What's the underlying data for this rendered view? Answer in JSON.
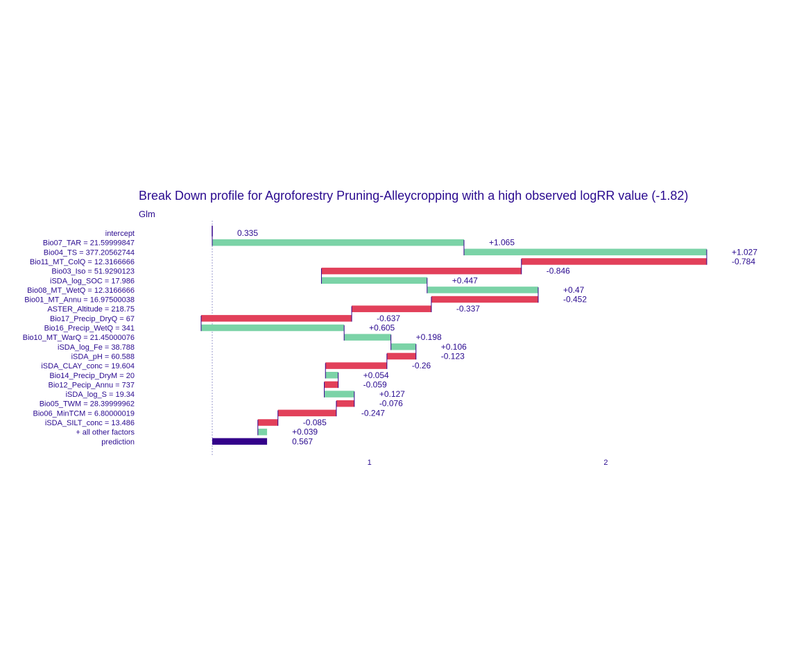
{
  "chart_data": {
    "type": "bar",
    "title": "Break Down profile for Agroforestry Pruning-Alleycropping with a high observed logRR value (-1.82)",
    "subtitle": "Glm",
    "xlabel": "",
    "ylabel": "",
    "xlim": [
      0.335,
      2.43
    ],
    "xticks": [
      1,
      2
    ],
    "grid": false,
    "legend": "none",
    "colors": {
      "positive": "#7bd3a7",
      "negative": "#e2405a",
      "prediction": "#33008a",
      "text": "#2a0a8f",
      "baseline": "#9a9acc",
      "connector": "#33008a"
    },
    "rows": [
      {
        "label": "intercept",
        "kind": "intercept",
        "start": 0.335,
        "end": 0.335,
        "text": "0.335"
      },
      {
        "label": "Bio07_TAR = 21.59999847",
        "kind": "pos",
        "start": 0.335,
        "end": 1.4,
        "text": "+1.065"
      },
      {
        "label": "Bio04_TS = 377.20562744",
        "kind": "pos",
        "start": 1.4,
        "end": 2.427,
        "text": "+1.027"
      },
      {
        "label": "Bio11_MT_ColQ = 12.3166666",
        "kind": "neg",
        "start": 2.427,
        "end": 1.643,
        "text": "-0.784"
      },
      {
        "label": "Bio03_Iso = 51.9290123",
        "kind": "neg",
        "start": 1.643,
        "end": 0.797,
        "text": "-0.846"
      },
      {
        "label": "iSDA_log_SOC = 17.986",
        "kind": "pos",
        "start": 0.797,
        "end": 1.244,
        "text": "+0.447"
      },
      {
        "label": "Bio08_MT_WetQ = 12.3166666",
        "kind": "pos",
        "start": 1.244,
        "end": 1.714,
        "text": "+0.47"
      },
      {
        "label": "Bio01_MT_Annu = 16.97500038",
        "kind": "neg",
        "start": 1.714,
        "end": 1.262,
        "text": "-0.452"
      },
      {
        "label": "ASTER_Altitude = 218.75",
        "kind": "neg",
        "start": 1.262,
        "end": 0.925,
        "text": "-0.337"
      },
      {
        "label": "Bio17_Precip_DryQ = 67",
        "kind": "neg",
        "start": 0.925,
        "end": 0.288,
        "text": "-0.637"
      },
      {
        "label": "Bio16_Precip_WetQ = 341",
        "kind": "pos",
        "start": 0.288,
        "end": 0.893,
        "text": "+0.605"
      },
      {
        "label": "Bio10_MT_WarQ = 21.45000076",
        "kind": "pos",
        "start": 0.893,
        "end": 1.091,
        "text": "+0.198"
      },
      {
        "label": "iSDA_log_Fe = 38.788",
        "kind": "pos",
        "start": 1.091,
        "end": 1.197,
        "text": "+0.106"
      },
      {
        "label": "iSDA_pH = 60.588",
        "kind": "neg",
        "start": 1.197,
        "end": 1.074,
        "text": "-0.123"
      },
      {
        "label": "iSDA_CLAY_conc = 19.604",
        "kind": "neg",
        "start": 1.074,
        "end": 0.814,
        "text": "-0.26"
      },
      {
        "label": "Bio14_Precip_DryM = 20",
        "kind": "pos",
        "start": 0.814,
        "end": 0.868,
        "text": "+0.054"
      },
      {
        "label": "Bio12_Pecip_Annu = 737",
        "kind": "neg",
        "start": 0.868,
        "end": 0.809,
        "text": "-0.059"
      },
      {
        "label": "iSDA_log_S = 19.34",
        "kind": "pos",
        "start": 0.809,
        "end": 0.936,
        "text": "+0.127"
      },
      {
        "label": "Bio05_TWM = 28.39999962",
        "kind": "neg",
        "start": 0.936,
        "end": 0.86,
        "text": "-0.076"
      },
      {
        "label": "Bio06_MinTCM = 6.80000019",
        "kind": "neg",
        "start": 0.86,
        "end": 0.613,
        "text": "-0.247"
      },
      {
        "label": "iSDA_SILT_conc = 13.486",
        "kind": "neg",
        "start": 0.613,
        "end": 0.528,
        "text": "-0.085"
      },
      {
        "label": "+ all other factors",
        "kind": "pos",
        "start": 0.528,
        "end": 0.567,
        "text": "+0.039"
      },
      {
        "label": "prediction",
        "kind": "prediction",
        "start": 0.335,
        "end": 0.567,
        "text": "0.567"
      }
    ]
  }
}
